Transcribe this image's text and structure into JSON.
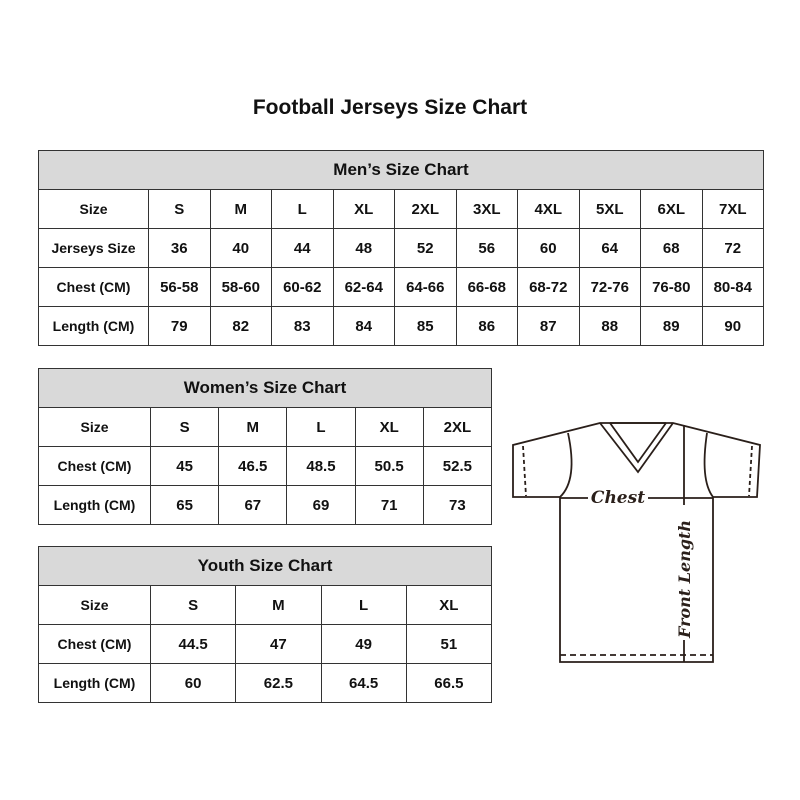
{
  "title": "Football Jerseys Size Chart",
  "men": {
    "title": "Men’s Size Chart",
    "rows": [
      [
        "Size",
        "S",
        "M",
        "L",
        "XL",
        "2XL",
        "3XL",
        "4XL",
        "5XL",
        "6XL",
        "7XL"
      ],
      [
        "Jerseys Size",
        "36",
        "40",
        "44",
        "48",
        "52",
        "56",
        "60",
        "64",
        "68",
        "72"
      ],
      [
        "Chest (CM)",
        "56-58",
        "58-60",
        "60-62",
        "62-64",
        "64-66",
        "66-68",
        "68-72",
        "72-76",
        "76-80",
        "80-84"
      ],
      [
        "Length (CM)",
        "79",
        "82",
        "83",
        "84",
        "85",
        "86",
        "87",
        "88",
        "89",
        "90"
      ]
    ]
  },
  "women": {
    "title": "Women’s Size Chart",
    "rows": [
      [
        "Size",
        "S",
        "M",
        "L",
        "XL",
        "2XL"
      ],
      [
        "Chest (CM)",
        "45",
        "46.5",
        "48.5",
        "50.5",
        "52.5"
      ],
      [
        "Length (CM)",
        "65",
        "67",
        "69",
        "71",
        "73"
      ]
    ]
  },
  "youth": {
    "title": "Youth Size Chart",
    "rows": [
      [
        "Size",
        "S",
        "M",
        "L",
        "XL"
      ],
      [
        "Chest (CM)",
        "44.5",
        "47",
        "49",
        "51"
      ],
      [
        "Length (CM)",
        "60",
        "62.5",
        "64.5",
        "66.5"
      ]
    ]
  },
  "diagram": {
    "chest": "Chest",
    "length": "Front Length"
  },
  "colors": {
    "header_bg": "#d9d9d9",
    "border": "#333333"
  }
}
